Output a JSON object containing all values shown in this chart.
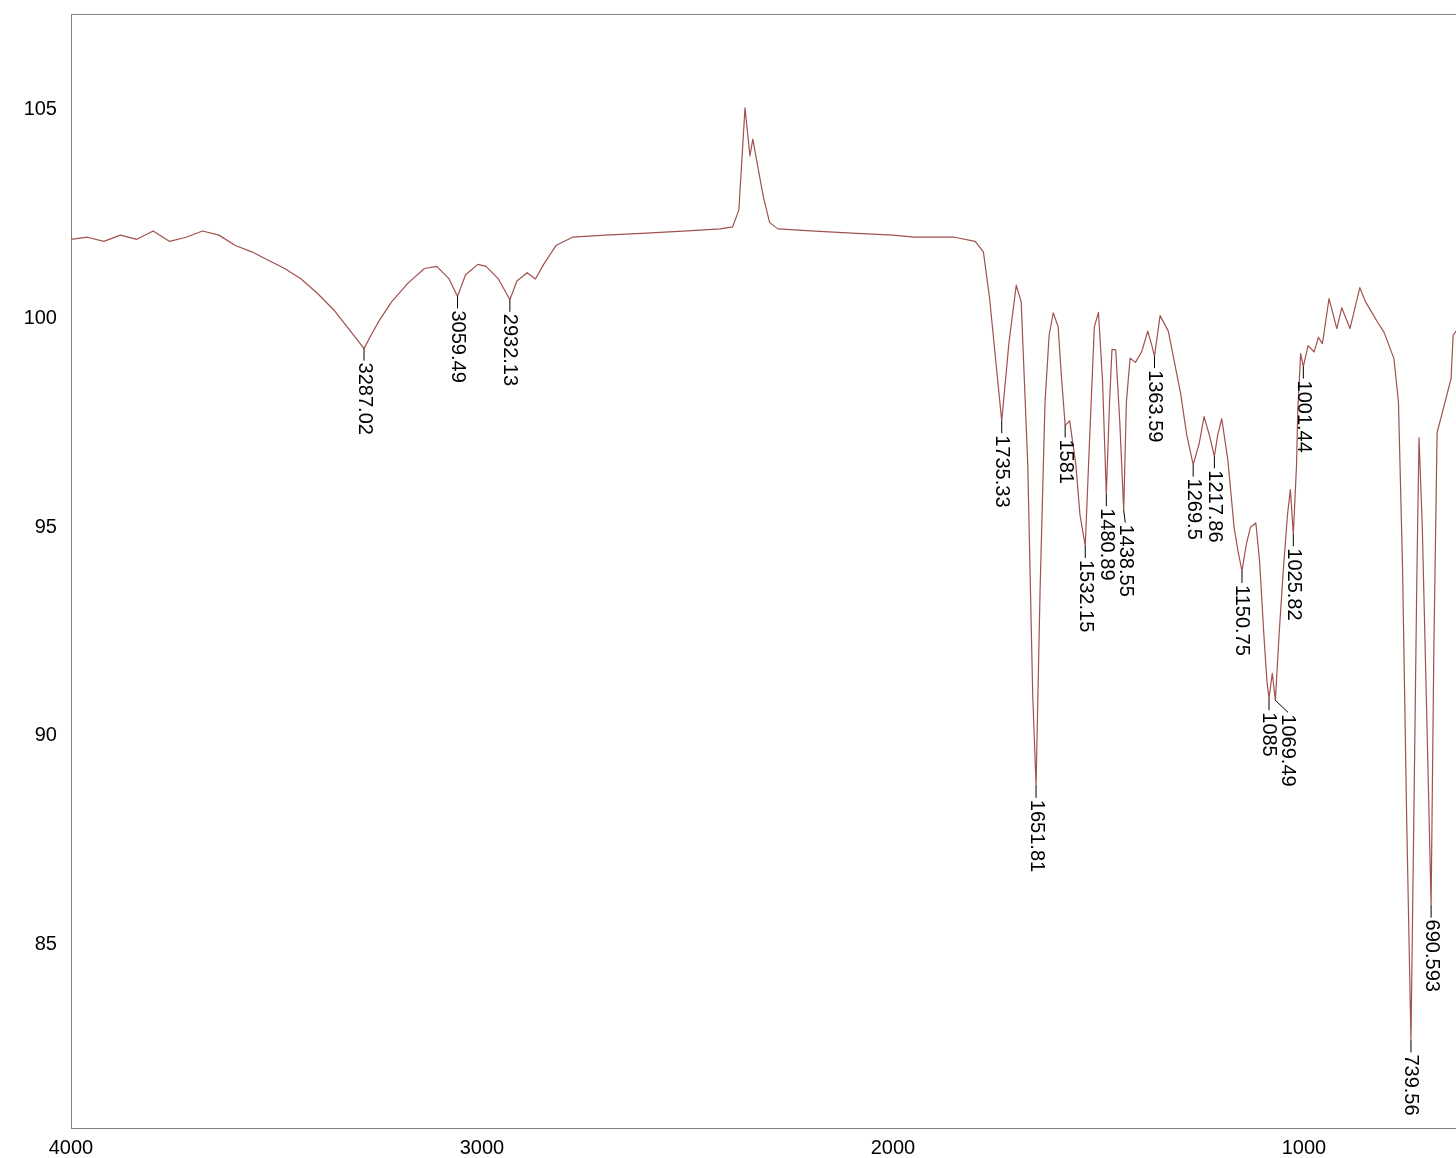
{
  "chart_data": {
    "type": "line",
    "xlim": [
      4000,
      630
    ],
    "xticks": [
      4000,
      3000,
      2000,
      1000
    ],
    "ylim": [
      80.6,
      107.3
    ],
    "yticks": [
      85,
      90,
      95,
      100,
      105
    ],
    "grid": false,
    "legend": false,
    "series": [
      {
        "color": "#a0524f",
        "x": [
          4000,
          3960,
          3920,
          3880,
          3840,
          3800,
          3760,
          3720,
          3680,
          3640,
          3600,
          3560,
          3520,
          3480,
          3440,
          3400,
          3360,
          3320,
          3300,
          3287.02,
          3270,
          3250,
          3220,
          3180,
          3140,
          3110,
          3080,
          3059.49,
          3040,
          3010,
          2990,
          2960,
          2932.13,
          2915,
          2890,
          2870,
          2850,
          2820,
          2780,
          2700,
          2600,
          2500,
          2420,
          2390,
          2375,
          2360,
          2348,
          2341,
          2330,
          2315,
          2300,
          2280,
          2200,
          2100,
          2000,
          1950,
          1850,
          1800,
          1780,
          1765,
          1750,
          1735.33,
          1718,
          1700,
          1688,
          1672,
          1660,
          1651.81,
          1642,
          1630,
          1620,
          1610,
          1598,
          1590,
          1581,
          1570,
          1555,
          1545,
          1532.15,
          1522,
          1510,
          1500,
          1490,
          1480.89,
          1473,
          1467,
          1458,
          1448,
          1438.55,
          1432,
          1423,
          1410,
          1395,
          1380,
          1370,
          1363.59,
          1350,
          1330,
          1300,
          1285,
          1269.5,
          1255,
          1243,
          1230,
          1217.86,
          1210,
          1200,
          1185,
          1170,
          1160,
          1150.75,
          1140,
          1130,
          1117,
          1108,
          1098,
          1090,
          1085,
          1077,
          1069.49,
          1060,
          1050,
          1040,
          1033,
          1025.82,
          1018,
          1015,
          1008,
          1001.44,
          990,
          975,
          965,
          955,
          939,
          920,
          908,
          888,
          864,
          850,
          832,
          820,
          805,
          781,
          770,
          760,
          750,
          739.56,
          732,
          725,
          720,
          712,
          700,
          690.593,
          684,
          676,
          660,
          642,
          637,
          630
        ],
        "values": [
          101.9,
          101.95,
          101.85,
          102.0,
          101.9,
          102.1,
          101.85,
          101.95,
          102.1,
          102.0,
          101.75,
          101.6,
          101.4,
          101.2,
          100.95,
          100.6,
          100.2,
          99.7,
          99.45,
          99.28,
          99.6,
          99.95,
          100.4,
          100.85,
          101.2,
          101.25,
          100.95,
          100.53,
          101.05,
          101.3,
          101.25,
          100.95,
          100.45,
          100.9,
          101.1,
          100.95,
          101.3,
          101.75,
          101.95,
          102.0,
          102.05,
          102.1,
          102.15,
          102.2,
          102.6,
          105.05,
          103.9,
          104.3,
          103.7,
          102.9,
          102.3,
          102.15,
          102.1,
          102.05,
          102.0,
          101.95,
          101.95,
          101.85,
          101.6,
          100.5,
          99.0,
          97.54,
          99.4,
          100.8,
          100.4,
          96.5,
          91.0,
          88.8,
          93.5,
          98.0,
          99.6,
          100.14,
          99.8,
          98.6,
          97.44,
          97.55,
          96.5,
          95.3,
          94.55,
          97.0,
          99.8,
          100.15,
          98.5,
          95.79,
          98.0,
          99.26,
          99.25,
          97.5,
          95.4,
          98.0,
          99.05,
          98.95,
          99.2,
          99.7,
          99.35,
          99.1,
          100.07,
          99.7,
          98.2,
          97.2,
          96.5,
          97.0,
          97.65,
          97.2,
          96.7,
          97.2,
          97.6,
          96.6,
          95.0,
          94.4,
          93.95,
          94.6,
          95.0,
          95.1,
          94.2,
          92.5,
          91.3,
          90.9,
          91.5,
          90.85,
          92.5,
          94.0,
          95.3,
          95.9,
          94.83,
          96.5,
          97.8,
          99.16,
          98.85,
          99.35,
          99.2,
          99.55,
          99.4,
          100.48,
          99.76,
          100.26,
          99.76,
          100.74,
          100.4,
          100.1,
          99.9,
          99.67,
          99.04,
          98.0,
          94.0,
          88.0,
          82.7,
          88.5,
          94.0,
          97.15,
          95.0,
          90.0,
          85.93,
          92.0,
          97.27,
          97.87,
          98.56,
          99.6,
          99.7
        ]
      }
    ],
    "annotations": [
      {
        "text": "3287.02",
        "x": 3287.02,
        "y": 99.28
      },
      {
        "text": "3059.49",
        "x": 3059.49,
        "y": 100.53
      },
      {
        "text": "2932.13",
        "x": 2932.13,
        "y": 100.45
      },
      {
        "text": "1735.33",
        "x": 1735.33,
        "y": 97.54
      },
      {
        "text": "1651.81",
        "x": 1651.81,
        "y": 88.8
      },
      {
        "text": "1581",
        "x": 1581,
        "y": 97.44
      },
      {
        "text": "1532.15",
        "x": 1532.15,
        "y": 94.55
      },
      {
        "text": "1480.89",
        "x": 1480.89,
        "y": 95.79
      },
      {
        "text": "1438.55",
        "x": 1438.55,
        "y": 95.4
      },
      {
        "text": "1363.59",
        "x": 1363.59,
        "y": 99.1
      },
      {
        "text": "1269.5",
        "x": 1269.5,
        "y": 96.5
      },
      {
        "text": "1217.86",
        "x": 1217.86,
        "y": 96.7
      },
      {
        "text": "1150.75",
        "x": 1150.75,
        "y": 93.95
      },
      {
        "text": "1085",
        "x": 1085,
        "y": 90.9
      },
      {
        "text": "1069.49",
        "x": 1069.49,
        "y": 90.85
      },
      {
        "text": "1025.82",
        "x": 1025.82,
        "y": 94.83
      },
      {
        "text": "1001.44",
        "x": 1001.44,
        "y": 98.85
      },
      {
        "text": "739.56",
        "x": 739.56,
        "y": 82.7
      },
      {
        "text": "690.593",
        "x": 690.593,
        "y": 85.93
      }
    ]
  }
}
